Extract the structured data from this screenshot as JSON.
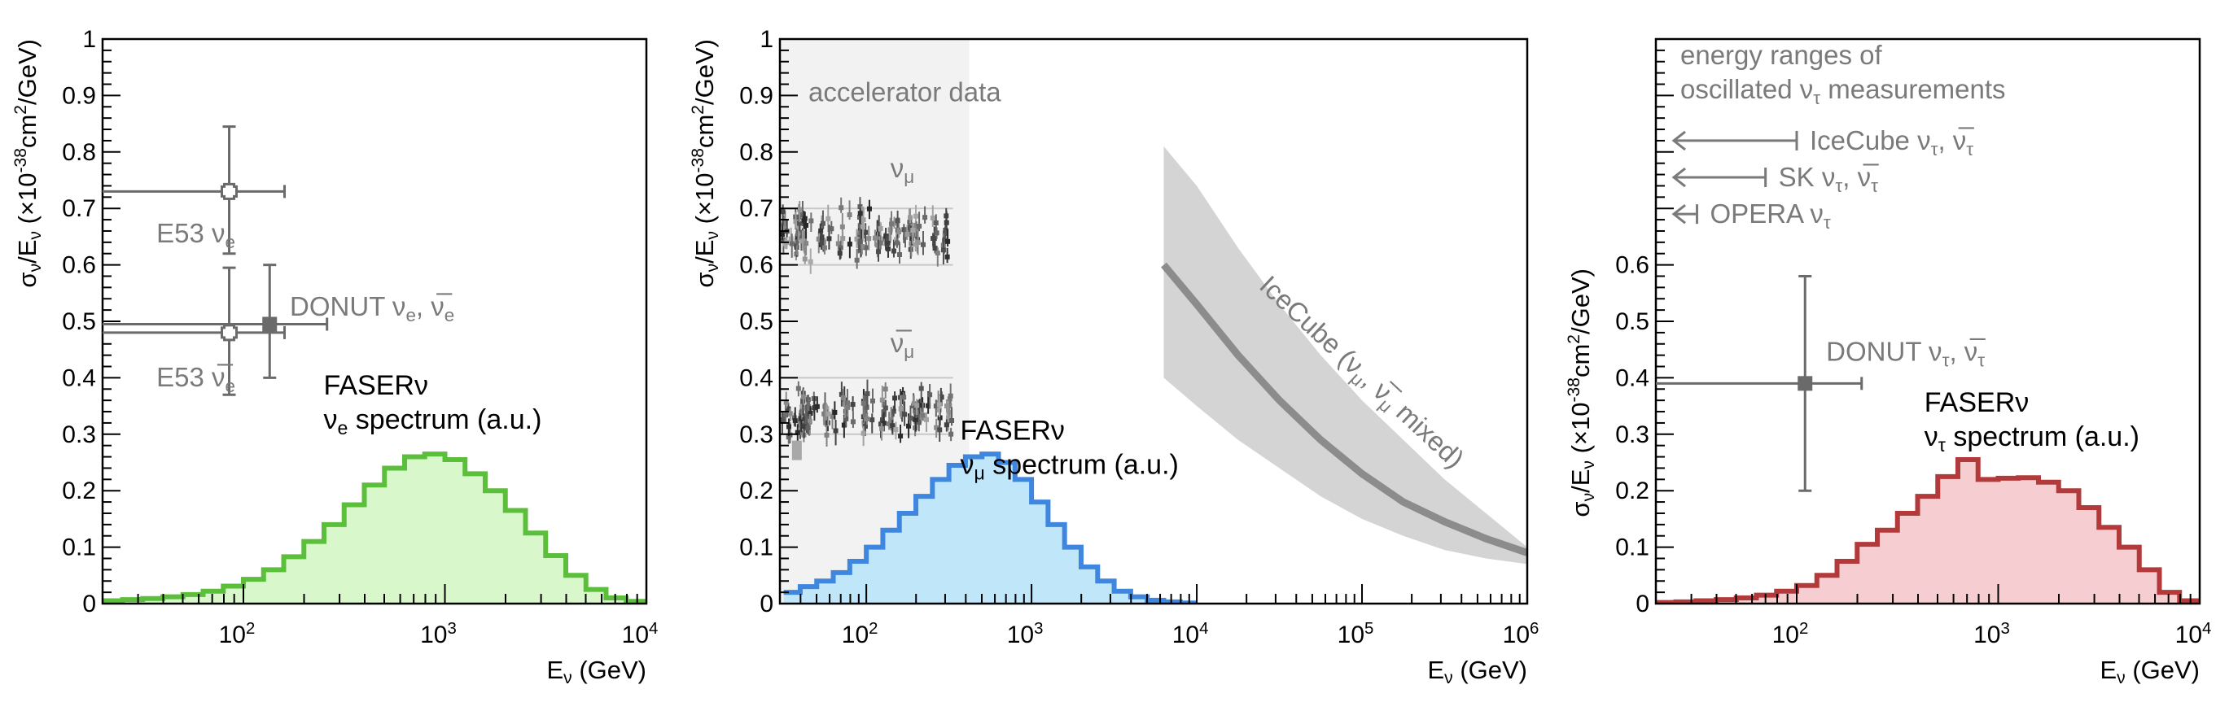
{
  "chart_data": [
    {
      "type": "histogram",
      "panel": "left",
      "xscale": "log",
      "xlim": [
        20,
        10000
      ],
      "ylim": [
        0,
        1
      ],
      "xlabel": "Eν (GeV)",
      "ylabel": "σν/Eν (×10⁻³⁸cm²/GeV)",
      "xlabel_parts": {
        "main": "E",
        "sub": "ν",
        "rest": " (GeV)"
      },
      "ylabel_parts": {
        "a": "σ",
        "a_sub": "ν",
        "b": "/E",
        "b_sub": "ν",
        "c": " (×10",
        "c_sup": "-38",
        "d": "cm",
        "d_sup": "2",
        "e": "/GeV)"
      },
      "yticks": [
        "0",
        "0.1",
        "0.2",
        "0.3",
        "0.4",
        "0.5",
        "0.6",
        "0.7",
        "0.8",
        "0.9",
        "1"
      ],
      "xtick_labels": [
        {
          "base": "10",
          "exp": "2"
        },
        {
          "base": "10",
          "exp": "3"
        },
        {
          "base": "10",
          "exp": "4"
        }
      ],
      "histogram": {
        "label_line1": "FASERν",
        "label_line2_main": "ν",
        "label_line2_sub": "e",
        "label_line2_rest": " spectrum (a.u.)",
        "color": "#5cbf3c",
        "fill": "#d8f8cc",
        "bin_edges_log10": [
          1.3,
          1.4,
          1.5,
          1.6,
          1.7,
          1.8,
          1.9,
          2.0,
          2.1,
          2.2,
          2.3,
          2.4,
          2.5,
          2.6,
          2.7,
          2.8,
          2.9,
          3.0,
          3.1,
          3.2,
          3.3,
          3.4,
          3.5,
          3.6,
          3.7,
          3.8,
          3.9,
          4.0
        ],
        "values": [
          0.005,
          0.007,
          0.009,
          0.012,
          0.016,
          0.022,
          0.031,
          0.043,
          0.06,
          0.083,
          0.11,
          0.14,
          0.175,
          0.21,
          0.24,
          0.26,
          0.265,
          0.255,
          0.23,
          0.2,
          0.165,
          0.125,
          0.085,
          0.05,
          0.025,
          0.01,
          0.004
        ]
      },
      "points": [
        {
          "name": "E53 νe",
          "label_main": "E53 ν",
          "label_sub": "e",
          "x": 85,
          "y": 0.73,
          "xerr": [
            20,
            160
          ],
          "yerr": [
            0.62,
            0.845
          ],
          "marker": "open-cross"
        },
        {
          "name": "E53 anti-νe",
          "label_main": "E53 ν̅",
          "label_sub": "e",
          "x": 85,
          "y": 0.48,
          "xerr": [
            20,
            160
          ],
          "yerr": [
            0.37,
            0.595
          ],
          "marker": "open-cross"
        },
        {
          "name": "DONUT νe",
          "x": 135,
          "y": 0.495,
          "xerr": [
            20,
            260
          ],
          "yerr": [
            0.4,
            0.6
          ],
          "marker": "filled-square"
        }
      ],
      "donut_label": {
        "a": "DONUT ν",
        "a_sub": "e",
        "b": ", ν̅",
        "b_sub": "e"
      }
    },
    {
      "type": "histogram",
      "panel": "middle",
      "xscale": "log",
      "xlim": [
        30,
        1000000
      ],
      "ylim": [
        0,
        1
      ],
      "xlabel": "Eν (GeV)",
      "ylabel": "σν/Eν (×10⁻³⁸cm²/GeV)",
      "yticks": [
        "0",
        "0.1",
        "0.2",
        "0.3",
        "0.4",
        "0.5",
        "0.6",
        "0.7",
        "0.8",
        "0.9",
        "1"
      ],
      "xtick_labels": [
        {
          "base": "10",
          "exp": "2"
        },
        {
          "base": "10",
          "exp": "3"
        },
        {
          "base": "10",
          "exp": "4"
        },
        {
          "base": "10",
          "exp": "5"
        },
        {
          "base": "10",
          "exp": "6"
        }
      ],
      "accelerator_band": {
        "label": "accelerator data",
        "xmin": 30,
        "xmax": 420
      },
      "accelerator_groups": [
        {
          "name": "νμ",
          "label_main": "ν",
          "label_sub": "μ",
          "center": 0.655,
          "spread": 0.04,
          "lines": [
            0.6,
            0.7
          ]
        },
        {
          "name": "anti-νμ",
          "label_main": "ν̅",
          "label_sub": "μ",
          "center": 0.34,
          "spread": 0.035,
          "lines": [
            0.3,
            0.4
          ]
        }
      ],
      "histogram": {
        "label_line1": "FASERν",
        "label_line2_main": "ν",
        "label_line2_sub": "μ",
        "label_line2_rest": " spectrum (a.u.)",
        "color": "#3f86df",
        "fill": "#bfe6f9",
        "bin_edges_log10": [
          1.5,
          1.6,
          1.7,
          1.8,
          1.9,
          2.0,
          2.1,
          2.2,
          2.3,
          2.4,
          2.5,
          2.6,
          2.7,
          2.8,
          2.9,
          3.0,
          3.1,
          3.2,
          3.3,
          3.4,
          3.5,
          3.6,
          3.7,
          3.8,
          3.9,
          4.0
        ],
        "values": [
          0.02,
          0.03,
          0.04,
          0.055,
          0.075,
          0.1,
          0.13,
          0.16,
          0.19,
          0.22,
          0.245,
          0.26,
          0.265,
          0.25,
          0.22,
          0.18,
          0.14,
          0.1,
          0.065,
          0.04,
          0.022,
          0.012,
          0.006,
          0.003,
          0.001
        ]
      },
      "icecube": {
        "label": "IceCube (νμ, ν̅μ mixed)",
        "label_parts": {
          "a": "IceCube (ν",
          "a_sub": "μ",
          "b": ", ν̅",
          "b_sub": "μ",
          "c": " mixed)"
        },
        "x_log10": [
          3.8,
          4.0,
          4.25,
          4.5,
          4.75,
          5.0,
          5.25,
          5.5,
          5.75,
          6.0
        ],
        "central": [
          0.6,
          0.53,
          0.44,
          0.36,
          0.29,
          0.23,
          0.18,
          0.145,
          0.115,
          0.09
        ],
        "upper": [
          0.81,
          0.74,
          0.63,
          0.53,
          0.44,
          0.36,
          0.29,
          0.22,
          0.16,
          0.1
        ],
        "lower": [
          0.4,
          0.35,
          0.29,
          0.24,
          0.19,
          0.15,
          0.12,
          0.095,
          0.08,
          0.07
        ]
      }
    },
    {
      "type": "histogram",
      "panel": "right",
      "xscale": "log",
      "xlim": [
        20,
        10000
      ],
      "ylim": [
        0,
        1
      ],
      "xlabel": "Eν (GeV)",
      "ylabel": "σν/Eν (×10⁻³⁸cm²/GeV)",
      "yticks": [
        "0",
        "0.1",
        "0.2",
        "0.3",
        "0.4",
        "0.5",
        "0.6"
      ],
      "xtick_labels": [
        {
          "base": "10",
          "exp": "2"
        },
        {
          "base": "10",
          "exp": "3"
        },
        {
          "base": "10",
          "exp": "4"
        }
      ],
      "energy_ranges_title_line1": "energy ranges of",
      "energy_ranges_title_line2_a": "oscillated ν",
      "energy_ranges_title_line2_sub": "τ",
      "energy_ranges_title_line2_b": " measurements",
      "energy_ranges": [
        {
          "name": "IceCube",
          "a": "IceCube ν",
          "a_sub": "τ",
          "b": ", ν̅",
          "b_sub": "τ",
          "xmax": 100,
          "y": 0.82
        },
        {
          "name": "SK",
          "a": "SK ν",
          "a_sub": "τ",
          "b": ", ν̅",
          "b_sub": "τ",
          "xmax": 70,
          "y": 0.755
        },
        {
          "name": "OPERA",
          "a": "OPERA ν",
          "a_sub": "τ",
          "b": "",
          "b_sub": "",
          "xmax": 32,
          "y": 0.69
        }
      ],
      "histogram": {
        "label_line1": "FASERν",
        "label_line2_main": "ν",
        "label_line2_sub": "τ",
        "label_line2_rest": " spectrum (a.u.)",
        "color": "#b33a3a",
        "fill": "#f6cdd0",
        "bin_edges_log10": [
          1.3,
          1.4,
          1.5,
          1.6,
          1.7,
          1.8,
          1.9,
          2.0,
          2.1,
          2.2,
          2.3,
          2.4,
          2.5,
          2.6,
          2.7,
          2.8,
          2.9,
          3.0,
          3.1,
          3.2,
          3.3,
          3.4,
          3.5,
          3.6,
          3.7,
          3.8,
          3.9,
          4.0
        ],
        "values": [
          0.002,
          0.003,
          0.005,
          0.007,
          0.01,
          0.015,
          0.022,
          0.032,
          0.05,
          0.075,
          0.105,
          0.13,
          0.16,
          0.19,
          0.225,
          0.255,
          0.22,
          0.222,
          0.223,
          0.215,
          0.2,
          0.17,
          0.135,
          0.1,
          0.06,
          0.02,
          0.005
        ]
      },
      "points": [
        {
          "name": "DONUT ντ",
          "x": 110,
          "y": 0.39,
          "xerr": [
            20,
            210
          ],
          "yerr": [
            0.2,
            0.58
          ],
          "marker": "filled-square"
        }
      ],
      "donut_label": {
        "a": "DONUT ν",
        "a_sub": "τ",
        "b": ", ν̅",
        "b_sub": "τ"
      }
    }
  ]
}
